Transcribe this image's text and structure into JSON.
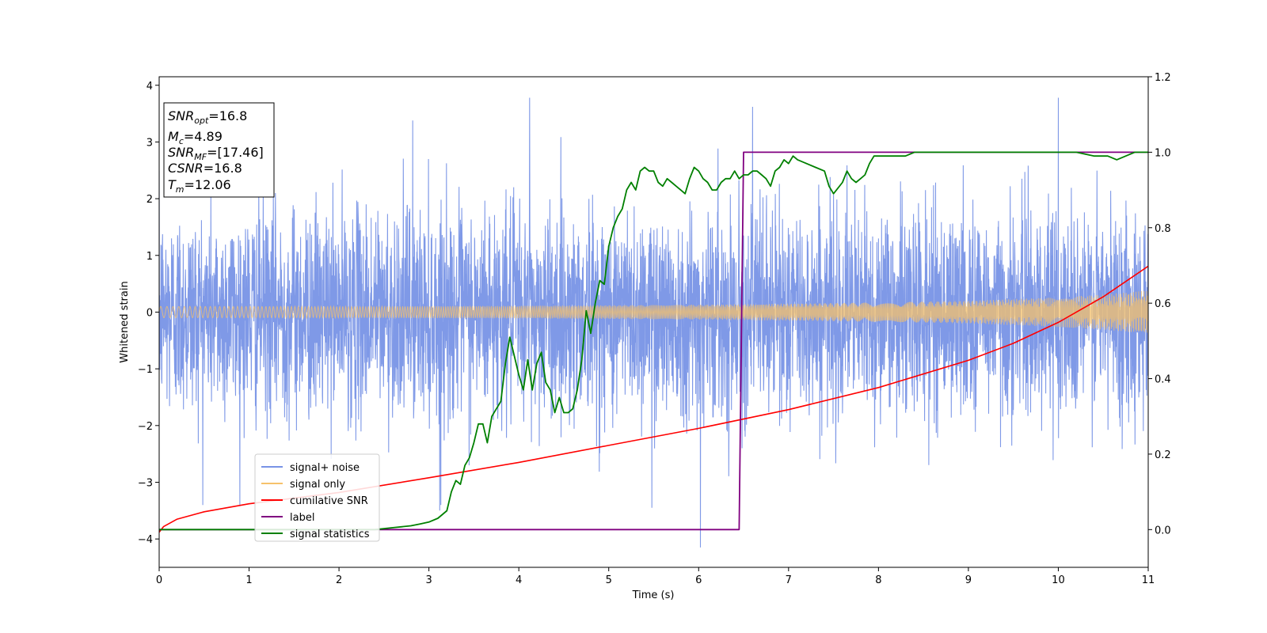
{
  "chart_data": {
    "type": "line",
    "xlabel": "Time (s)",
    "ylabel": "Whitened strain",
    "xlim": [
      0,
      11
    ],
    "ylim": [
      -4.5,
      4.15
    ],
    "y2lim": [
      -0.1,
      1.2
    ],
    "x_ticks": [
      "0",
      "1",
      "2",
      "3",
      "4",
      "5",
      "6",
      "7",
      "8",
      "9",
      "10",
      "11"
    ],
    "y_ticks": [
      "−4",
      "−3",
      "−2",
      "−1",
      "0",
      "1",
      "2",
      "3",
      "4"
    ],
    "y2_ticks": [
      "0.0",
      "0.2",
      "0.4",
      "0.6",
      "0.8",
      "1.0",
      "1.2"
    ],
    "grid": false,
    "legend_position": "lower-left",
    "info_box": {
      "snr_opt": {
        "main": "SNR",
        "sub": "opt",
        "value": "=16.8"
      },
      "mc": {
        "main": "M",
        "sub": "c",
        "value": "=4.89"
      },
      "snr_mf": {
        "main": "SNR",
        "sub": "MF",
        "value": "=[17.46]"
      },
      "csnr": {
        "main": "CSNR",
        "value": "=16.8"
      },
      "tm": {
        "main": "T",
        "sub": "m",
        "value": "=12.06"
      }
    },
    "series": [
      {
        "name": "signal+ noise",
        "color": "#7893e6",
        "axis": "left",
        "description": "whitened noisy strain, std ~0.9, visible spikes",
        "notable_peaks": [
          [
            4.12,
            3.78
          ],
          [
            10.0,
            3.78
          ],
          [
            6.6,
            3.62
          ],
          [
            2.82,
            3.38
          ],
          [
            6.02,
            -4.15
          ],
          [
            5.48,
            -3.45
          ],
          [
            3.12,
            -3.5
          ]
        ]
      },
      {
        "name": "signal only",
        "color": "#f6c26b",
        "axis": "left",
        "description": "chirp with growing amplitude",
        "envelope_x": [
          0,
          2,
          4,
          6,
          8,
          9,
          10,
          10.5,
          11
        ],
        "envelope_amp": [
          0.1,
          0.1,
          0.11,
          0.13,
          0.17,
          0.2,
          0.26,
          0.31,
          0.38
        ]
      },
      {
        "name": "cumilative SNR",
        "color": "#ff0000",
        "axis": "left",
        "x": [
          0,
          0.05,
          0.2,
          0.5,
          1,
          2,
          3,
          4,
          5,
          6,
          7,
          8,
          9,
          9.5,
          10,
          10.5,
          11
        ],
        "y": [
          -3.88,
          -3.78,
          -3.65,
          -3.52,
          -3.38,
          -3.18,
          -2.92,
          -2.65,
          -2.35,
          -2.05,
          -1.72,
          -1.33,
          -0.85,
          -0.55,
          -0.18,
          0.27,
          0.81
        ]
      },
      {
        "name": "label",
        "color": "#800080",
        "axis": "right",
        "x": [
          0,
          6.45,
          6.5,
          11
        ],
        "y": [
          0.0,
          0.0,
          1.0,
          1.0
        ]
      },
      {
        "name": "signal statistics",
        "color": "#008000",
        "axis": "right",
        "x": [
          0,
          2.4,
          2.6,
          2.8,
          2.9,
          3.0,
          3.1,
          3.2,
          3.25,
          3.3,
          3.35,
          3.4,
          3.45,
          3.5,
          3.55,
          3.6,
          3.65,
          3.7,
          3.8,
          3.85,
          3.9,
          3.95,
          4.0,
          4.05,
          4.1,
          4.15,
          4.2,
          4.25,
          4.3,
          4.35,
          4.4,
          4.45,
          4.5,
          4.55,
          4.6,
          4.65,
          4.7,
          4.75,
          4.8,
          4.85,
          4.9,
          4.95,
          5.0,
          5.05,
          5.1,
          5.15,
          5.2,
          5.25,
          5.3,
          5.35,
          5.4,
          5.45,
          5.5,
          5.55,
          5.6,
          5.65,
          5.7,
          5.75,
          5.8,
          5.85,
          5.9,
          5.95,
          6.0,
          6.05,
          6.1,
          6.15,
          6.2,
          6.25,
          6.3,
          6.35,
          6.4,
          6.45,
          6.5,
          6.55,
          6.6,
          6.65,
          6.7,
          6.75,
          6.8,
          6.85,
          6.9,
          6.95,
          7.0,
          7.05,
          7.1,
          7.2,
          7.3,
          7.4,
          7.45,
          7.5,
          7.6,
          7.65,
          7.7,
          7.75,
          7.8,
          7.85,
          7.9,
          7.95,
          8.0,
          8.1,
          8.2,
          8.3,
          8.4,
          8.5,
          8.6,
          8.7,
          8.8,
          8.9,
          9.0,
          9.2,
          9.4,
          9.6,
          9.8,
          10.0,
          10.2,
          10.4,
          10.55,
          10.65,
          10.75,
          10.85,
          11.0
        ],
        "y": [
          0.0,
          0.0,
          0.005,
          0.01,
          0.015,
          0.02,
          0.03,
          0.05,
          0.1,
          0.13,
          0.12,
          0.17,
          0.19,
          0.23,
          0.28,
          0.28,
          0.23,
          0.3,
          0.34,
          0.44,
          0.51,
          0.46,
          0.41,
          0.37,
          0.45,
          0.37,
          0.44,
          0.47,
          0.39,
          0.37,
          0.31,
          0.35,
          0.31,
          0.31,
          0.32,
          0.37,
          0.45,
          0.58,
          0.52,
          0.6,
          0.66,
          0.65,
          0.75,
          0.8,
          0.83,
          0.85,
          0.9,
          0.92,
          0.9,
          0.95,
          0.96,
          0.95,
          0.95,
          0.92,
          0.91,
          0.93,
          0.92,
          0.91,
          0.9,
          0.89,
          0.93,
          0.96,
          0.95,
          0.93,
          0.92,
          0.9,
          0.9,
          0.92,
          0.93,
          0.93,
          0.95,
          0.93,
          0.94,
          0.94,
          0.95,
          0.95,
          0.94,
          0.93,
          0.91,
          0.95,
          0.96,
          0.98,
          0.97,
          0.99,
          0.98,
          0.97,
          0.96,
          0.95,
          0.91,
          0.89,
          0.92,
          0.95,
          0.93,
          0.92,
          0.93,
          0.94,
          0.97,
          0.99,
          0.99,
          0.99,
          0.99,
          0.99,
          1.0,
          1.0,
          1.0,
          1.0,
          1.0,
          1.0,
          1.0,
          1.0,
          1.0,
          1.0,
          1.0,
          1.0,
          1.0,
          0.99,
          0.99,
          0.98,
          0.99,
          1.0,
          1.0
        ]
      }
    ]
  }
}
